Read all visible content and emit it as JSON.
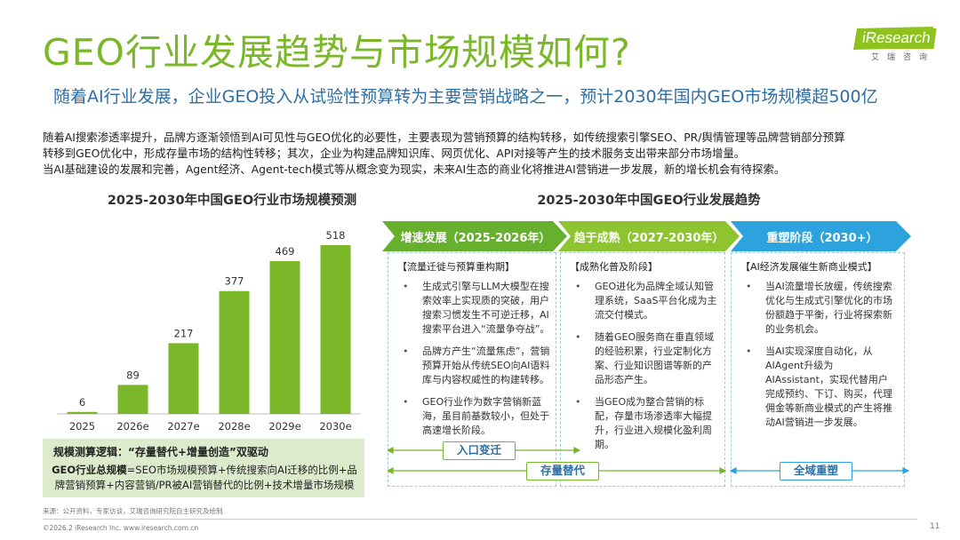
{
  "page": {
    "title": "GEO行业发展趋势与市场规模如何?",
    "subtitle": "随着AI行业发展，企业GEO投入从试验性预算转为主要营销战略之一，预计2030年国内GEO市场规模超500亿",
    "body": [
      "随着AI搜索渗透率提升，品牌方逐渐领悟到AI可见性与GEO优化的必要性，主要表现为营销预算的结构转移，如传统搜索引擎SEO、PR/舆情管理等品牌营销部分预算",
      "转移到GEO优化中，形成存量市场的结构性转移；其次，企业为构建品牌知识库、网页优化、API对接等产生的技术服务支出带来部分市场增量。",
      "当AI基础建设的发展和完善，Agent经济、Agent-tech模式等从概念变为现实，未来AI生态的商业化将推进AI营销进一步发展，新的增长机会有待探索。"
    ]
  },
  "logo": {
    "word": "iResearch",
    "sub": "艾瑞咨询"
  },
  "colors": {
    "title_green": "#7ab829",
    "bar_green": "#7ab829",
    "subtitle_blue": "#2f6fa6",
    "arrow_green_1": "#66b02e",
    "arrow_green_2": "#8fc431",
    "arrow_blue": "#2ca3dc",
    "logic_bg": "#dcebcc"
  },
  "chart_data": {
    "type": "bar",
    "title": "2025-2030年中国GEO行业市场规模预测",
    "categories": [
      "2025",
      "2026e",
      "2027e",
      "2028e",
      "2029e",
      "2030e"
    ],
    "values": [
      6,
      89,
      217,
      377,
      469,
      518
    ],
    "ylim": [
      0,
      518
    ],
    "grid": false,
    "legend": "none"
  },
  "logic": {
    "title": "规模测算逻辑：“存量替代+增量创造”双驱动",
    "formula_label": "GEO行业总规模",
    "formula": "=SEO市场规模预算+传统搜索向AI迁移的比例+品牌营销预算+内容营销/PR被AI营销替代的比例+技术增量市场规模"
  },
  "trend": {
    "title": "2025-2030年中国GEO行业发展趋势",
    "stages": [
      {
        "label": "增速发展（2025-2026年）",
        "head": "【流量迁徙与预算重构期】",
        "items": [
          "生成式引擎与LLM大模型在搜索效率上实现质的突破，用户搜索习惯发生不可逆迁移，AI搜索平台进入“流量争夺战”。",
          "品牌方产生“流量焦虑”，营销预算开始从传统SEO向AI语料库与内容权威性的构建转移。",
          "GEO行业作为数字营销新蓝海，虽目前基数较小，但处于高速增长阶段。"
        ]
      },
      {
        "label": "趋于成熟（2027-2030年）",
        "head": "【成熟化普及阶段】",
        "items": [
          "GEO进化为品牌全域认知管理系统，SaaS平台化成为主流交付模式。",
          "随着GEO服务商在垂直领域的经验积累，行业定制化方案、行业知识图谱等新的产品形态产生。",
          "当GEO成为整合营销的标配，存量市场渗透率大幅提升，行业进入规模化盈利周期。"
        ]
      },
      {
        "label": "重塑阶段（2030+）",
        "head": "【AI经济发展催生新商业模式】",
        "items": [
          "当AI流量增长放缓，传统搜索优化与生成式引擎优化的市场份额趋于平衡，行业将探索新的业务机会。",
          "当AI实现深度自动化，从AIAgent升级为AIAssistant，实现代替用户完成预约、下订、购买，代理佣金等新商业模式的产生将推动AI营销进一步发展。"
        ]
      }
    ],
    "tags": {
      "entry": "入口变迁",
      "stock": "存量替代",
      "global": "全域重塑"
    }
  },
  "footer": {
    "source": "来源：公开资料，专家访谈，艾瑞咨询研究院自主研究及绘制",
    "copyright": "©2026.2 iResearch Inc. www.iresearch.com.cn",
    "page_number": "11"
  }
}
